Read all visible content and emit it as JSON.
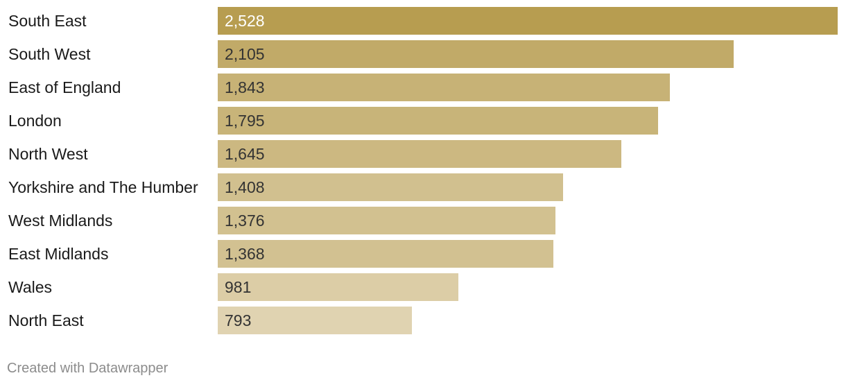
{
  "chart_data": {
    "type": "bar",
    "orientation": "horizontal",
    "categories": [
      "South East",
      "South West",
      "East of England",
      "London",
      "North West",
      "Yorkshire and The Humber",
      "West Midlands",
      "East Midlands",
      "Wales",
      "North East"
    ],
    "values": [
      2528,
      2105,
      1843,
      1795,
      1645,
      1408,
      1376,
      1368,
      981,
      793
    ],
    "value_labels": [
      "2,528",
      "2,105",
      "1,843",
      "1,795",
      "1,645",
      "1,408",
      "1,376",
      "1,368",
      "981",
      "793"
    ],
    "xlim": [
      0,
      2528
    ],
    "grid": false,
    "color_scale": [
      "#b79d50",
      "#e0d3b1"
    ]
  },
  "footer": {
    "credit": "Created with Datawrapper"
  }
}
